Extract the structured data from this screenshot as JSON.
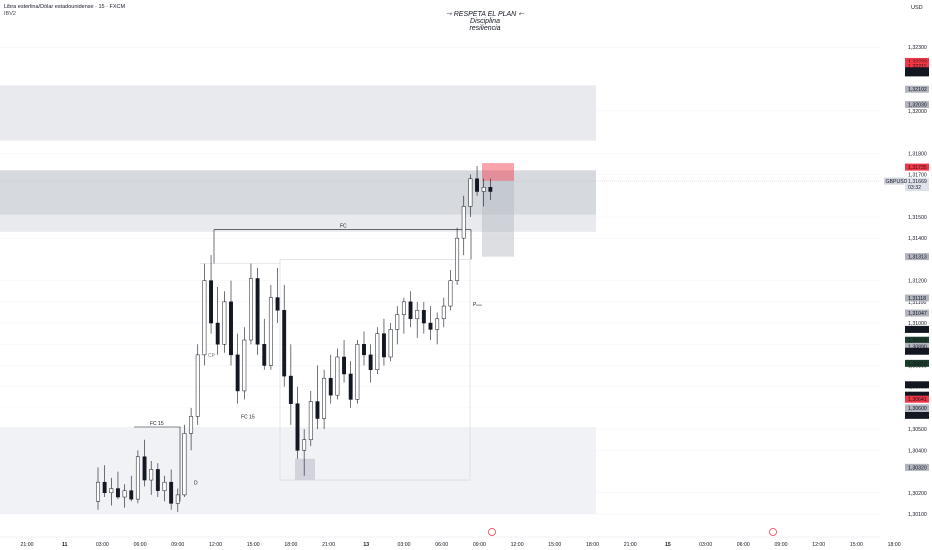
{
  "header": {
    "symbol_line": "Libra esterlina/Dólar estadounidense · 15 · FXCM",
    "indicator": "IBV2"
  },
  "watermark": {
    "line1": "⇾ RESPETA EL PLAN ⇽",
    "line2": "Disciplina",
    "line3": "resiliencia"
  },
  "currency": "USD",
  "symbol_tag": "GBPUSD",
  "countdown": "03:32",
  "annotations": {
    "fc_top": "FC",
    "fc_15_low": "FC 15",
    "fc_15_left": "FC 15",
    "mark_cp": "CP",
    "mark_d": "D",
    "mark_p": "P"
  },
  "colors": {
    "bull": "#ffffff",
    "bear": "#131722",
    "zone": "#d1d4dc",
    "short_red": "#f23645",
    "grid": "#f0f3fa"
  },
  "chart_data": {
    "type": "candlestick",
    "ylim": [
      1.301,
      1.324
    ],
    "y_ticks": [
      "1,32300",
      "1,32000",
      "1,31800",
      "1,31700",
      "1,31500",
      "1,31400",
      "1,31200",
      "1,31100",
      "1,31000",
      "1,30900",
      "1,30800",
      "1,30700",
      "1,30600",
      "1,30500",
      "1,30400",
      "1,30200",
      "1,30100"
    ],
    "x_ticks": [
      "21:00",
      "11",
      "03:00",
      "06:00",
      "09:00",
      "12:00",
      "15:00",
      "18:00",
      "21:00",
      "13",
      "03:00",
      "06:00",
      "09:00",
      "12:00",
      "15:00",
      "18:00",
      "21:00",
      "15",
      "03:00",
      "06:00",
      "09:00",
      "12:00",
      "15:00",
      "18:00"
    ],
    "price_labels": [
      {
        "value": "1,32233",
        "kind": "red"
      },
      {
        "value": "1,32211",
        "kind": "red"
      },
      {
        "value": "1,32189",
        "kind": "dark"
      },
      {
        "value": "1,32179",
        "kind": "dark"
      },
      {
        "value": "1,32102",
        "kind": "gray"
      },
      {
        "value": "1,32030",
        "kind": "gray"
      },
      {
        "value": "1,31735",
        "kind": "red"
      },
      {
        "value": "1,31669",
        "kind": "white"
      },
      {
        "value": "1,31640",
        "kind": "gray"
      },
      {
        "value": "1,31313",
        "kind": "gray"
      },
      {
        "value": "1,31118",
        "kind": "gray"
      },
      {
        "value": "1,31047",
        "kind": "gray"
      },
      {
        "value": "1,30970",
        "kind": "dark"
      },
      {
        "value": "1,30919",
        "kind": "green"
      },
      {
        "value": "1,30890",
        "kind": "gray"
      },
      {
        "value": "1,30867",
        "kind": "dark"
      },
      {
        "value": "1,30810",
        "kind": "green"
      },
      {
        "value": "1,30709",
        "kind": "dark"
      },
      {
        "value": "1,30660",
        "kind": "dark"
      },
      {
        "value": "1,30641",
        "kind": "red"
      },
      {
        "value": "1,30600",
        "kind": "gray"
      },
      {
        "value": "1,30565",
        "kind": "dark"
      },
      {
        "value": "1,30320",
        "kind": "gray"
      }
    ],
    "candles": [
      [
        1.3016,
        1.3032,
        1.3012,
        1.3025
      ],
      [
        1.3025,
        1.3033,
        1.3018,
        1.302
      ],
      [
        1.302,
        1.3027,
        1.3014,
        1.3022
      ],
      [
        1.3022,
        1.303,
        1.3017,
        1.3018
      ],
      [
        1.3018,
        1.3024,
        1.3013,
        1.3021
      ],
      [
        1.3021,
        1.3028,
        1.3016,
        1.3017
      ],
      [
        1.3017,
        1.304,
        1.3015,
        1.3037
      ],
      [
        1.3037,
        1.3045,
        1.3023,
        1.3026
      ],
      [
        1.3026,
        1.3035,
        1.3019,
        1.3031
      ],
      [
        1.3031,
        1.3034,
        1.3018,
        1.3021
      ],
      [
        1.3021,
        1.3028,
        1.3016,
        1.3025
      ],
      [
        1.3025,
        1.3031,
        1.3012,
        1.3015
      ],
      [
        1.3015,
        1.3022,
        1.3011,
        1.3019
      ],
      [
        1.3019,
        1.3052,
        1.3018,
        1.3048
      ],
      [
        1.3048,
        1.306,
        1.304,
        1.3056
      ],
      [
        1.3056,
        1.309,
        1.3052,
        1.3085
      ],
      [
        1.3085,
        1.3128,
        1.308,
        1.312
      ],
      [
        1.312,
        1.3132,
        1.3095,
        1.31
      ],
      [
        1.31,
        1.3117,
        1.3085,
        1.309
      ],
      [
        1.309,
        1.3115,
        1.3086,
        1.311
      ],
      [
        1.311,
        1.312,
        1.308,
        1.3085
      ],
      [
        1.3085,
        1.3095,
        1.3062,
        1.3068
      ],
      [
        1.3068,
        1.3098,
        1.3064,
        1.3092
      ],
      [
        1.3092,
        1.3128,
        1.309,
        1.3121
      ],
      [
        1.3121,
        1.3126,
        1.3085,
        1.309
      ],
      [
        1.309,
        1.3102,
        1.3078,
        1.308
      ],
      [
        1.308,
        1.3118,
        1.3078,
        1.3112
      ],
      [
        1.3112,
        1.3126,
        1.31,
        1.3106
      ],
      [
        1.3106,
        1.3118,
        1.307,
        1.3075
      ],
      [
        1.3075,
        1.309,
        1.3052,
        1.3062
      ],
      [
        1.3062,
        1.307,
        1.3036,
        1.304
      ],
      [
        1.304,
        1.305,
        1.3028,
        1.3045
      ],
      [
        1.3045,
        1.3068,
        1.3042,
        1.3063
      ],
      [
        1.3063,
        1.308,
        1.305,
        1.3055
      ],
      [
        1.3055,
        1.3078,
        1.305,
        1.3074
      ],
      [
        1.3074,
        1.3085,
        1.3062,
        1.3066
      ],
      [
        1.3066,
        1.3088,
        1.3064,
        1.3084
      ],
      [
        1.3084,
        1.3092,
        1.3072,
        1.3076
      ],
      [
        1.3076,
        1.3082,
        1.306,
        1.3064
      ],
      [
        1.3064,
        1.3092,
        1.3062,
        1.309
      ],
      [
        1.309,
        1.3096,
        1.308,
        1.3085
      ],
      [
        1.3085,
        1.309,
        1.3072,
        1.3078
      ],
      [
        1.3078,
        1.3098,
        1.3076,
        1.3095
      ],
      [
        1.3095,
        1.3102,
        1.308,
        1.3084
      ],
      [
        1.3084,
        1.31,
        1.3082,
        1.3097
      ],
      [
        1.3097,
        1.3108,
        1.309,
        1.3104
      ],
      [
        1.3104,
        1.3112,
        1.3095,
        1.311
      ],
      [
        1.311,
        1.3115,
        1.3098,
        1.3102
      ],
      [
        1.3102,
        1.311,
        1.3093,
        1.3106
      ],
      [
        1.3106,
        1.311,
        1.3095,
        1.31
      ],
      [
        1.31,
        1.3108,
        1.3092,
        1.3097
      ],
      [
        1.3097,
        1.3105,
        1.309,
        1.3102
      ],
      [
        1.3102,
        1.3112,
        1.3098,
        1.3108
      ],
      [
        1.3108,
        1.3125,
        1.3106,
        1.312
      ],
      [
        1.312,
        1.3145,
        1.3118,
        1.314
      ],
      [
        1.314,
        1.316,
        1.3132,
        1.3155
      ],
      [
        1.3155,
        1.317,
        1.315,
        1.3168
      ],
      [
        1.3168,
        1.3174,
        1.316,
        1.3162
      ],
      [
        1.3162,
        1.3168,
        1.3155,
        1.3164
      ],
      [
        1.3164,
        1.3168,
        1.3158,
        1.3162
      ]
    ],
    "zones": [
      {
        "top": 1.3212,
        "bottom": 1.3186,
        "fill": "light"
      },
      {
        "top": 1.3172,
        "bottom": 1.3151,
        "fill": "mid"
      },
      {
        "top": 1.3151,
        "bottom": 1.3143,
        "fill": "light"
      },
      {
        "top": 1.3051,
        "bottom": 1.301,
        "fill": "faint"
      }
    ],
    "short_position": {
      "entry": 1.3167,
      "stop": 1.31735,
      "target": 1.31313
    }
  }
}
